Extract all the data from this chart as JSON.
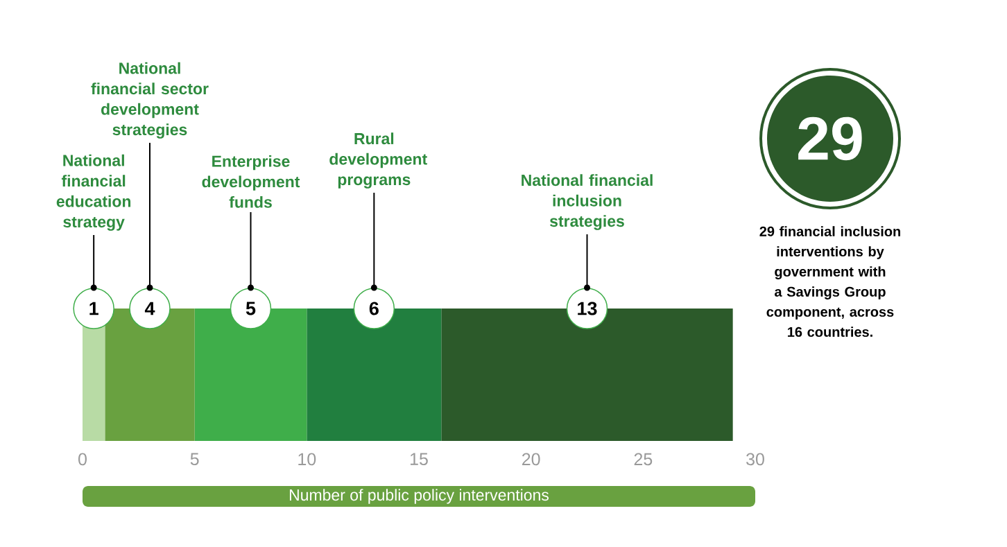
{
  "chart_data": {
    "type": "bar",
    "orientation": "horizontal",
    "stacked": true,
    "categories": [
      null
    ],
    "series": [
      {
        "name": "National financial education strategy",
        "color": "#b8dba5",
        "values": [
          1
        ]
      },
      {
        "name": "National financial sector development strategies",
        "color": "#69a140",
        "values": [
          4
        ]
      },
      {
        "name": "Enterprise development funds",
        "color": "#3fae4a",
        "values": [
          5
        ]
      },
      {
        "name": "Rural development programs",
        "color": "#217f3f",
        "values": [
          6
        ]
      },
      {
        "name": "National financial inclusion strategies",
        "color": "#2c5a2a",
        "values": [
          13
        ]
      }
    ],
    "xlim": [
      0,
      30
    ],
    "xticks": [
      0,
      5,
      10,
      15,
      20,
      25,
      30
    ],
    "xlabel": "Number of public policy interventions",
    "data_labels": true,
    "annotations": [
      "29",
      "29 financial inclusion interventions by government with a Savings Group component, across 16 countries."
    ]
  }
}
